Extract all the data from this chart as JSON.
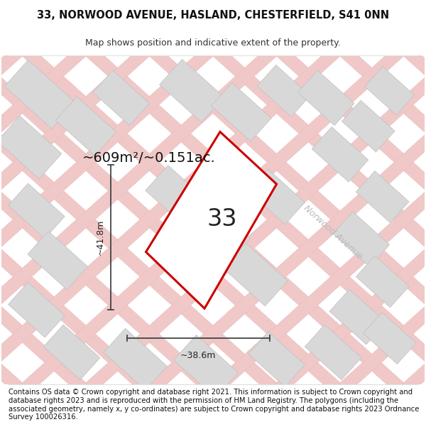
{
  "title_line1": "33, NORWOOD AVENUE, HASLAND, CHESTERFIELD, S41 0NN",
  "title_line2": "Map shows position and indicative extent of the property.",
  "footer_text": "Contains OS data © Crown copyright and database right 2021. This information is subject to Crown copyright and database rights 2023 and is reproduced with the permission of HM Land Registry. The polygons (including the associated geometry, namely x, y co-ordinates) are subject to Crown copyright and database rights 2023 Ordnance Survey 100026316.",
  "area_label": "~609m²/~0.151ac.",
  "width_label": "~38.6m",
  "height_label": "~41.8m",
  "number_label": "33",
  "street_label": "Norwood Avenue",
  "map_bg": "#f7f3f1",
  "plot_outline_color": "#cc0000",
  "background_color": "#ffffff",
  "building_fill": "#d8d8d8",
  "building_edge": "#c0c0c0",
  "road_line_color": "#f2c8c8",
  "dim_line_color": "#444444",
  "title_fontsize": 10.5,
  "subtitle_fontsize": 9,
  "footer_fontsize": 7.2
}
